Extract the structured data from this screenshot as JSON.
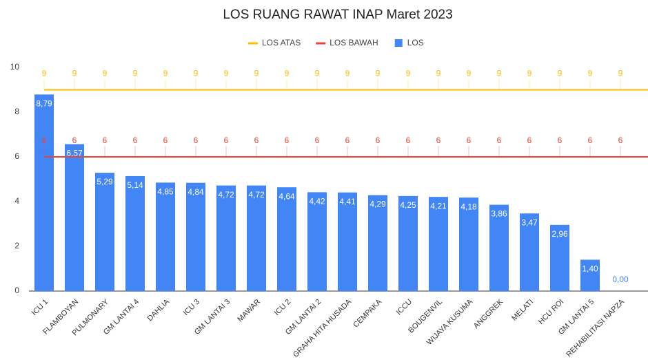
{
  "chart_data": {
    "type": "bar",
    "title": "LOS RUANG RAWAT INAP Maret 2023",
    "categories": [
      "ICU 1",
      "FLAMBOYAN",
      "PULMONARY",
      "GM LANTAI 4",
      "DAHLIA",
      "ICU 3",
      "GM LANTAI 3",
      "MAWAR",
      "ICU 2",
      "GM LANTAI 2",
      "GRAHA HITA HUSADA",
      "CEMPAKA",
      "ICCU",
      "BOUGENVIL",
      "WIJAYA KUSUMA",
      "ANGGREK",
      "MELATI",
      "HCU ROI",
      "GM LANTAI 5",
      "REHABILITASI NAPZA"
    ],
    "series": [
      {
        "name": "LOS ATAS",
        "type": "line",
        "color": "#fbbc04",
        "values": [
          9,
          9,
          9,
          9,
          9,
          9,
          9,
          9,
          9,
          9,
          9,
          9,
          9,
          9,
          9,
          9,
          9,
          9,
          9,
          9
        ]
      },
      {
        "name": "LOS BAWAH",
        "type": "line",
        "color": "#ea4335",
        "values": [
          6,
          6,
          6,
          6,
          6,
          6,
          6,
          6,
          6,
          6,
          6,
          6,
          6,
          6,
          6,
          6,
          6,
          6,
          6,
          6
        ]
      },
      {
        "name": "LOS",
        "type": "bar",
        "color": "#4285f4",
        "values": [
          8.79,
          6.57,
          5.29,
          5.14,
          4.85,
          4.84,
          4.72,
          4.72,
          4.64,
          4.42,
          4.41,
          4.29,
          4.25,
          4.21,
          4.18,
          3.86,
          3.47,
          2.96,
          1.4,
          0.0
        ],
        "value_labels": [
          "8,79",
          "6,57",
          "5,29",
          "5,14",
          "4,85",
          "4,84",
          "4,72",
          "4,72",
          "4,64",
          "4,42",
          "4,41",
          "4,29",
          "4,25",
          "4,21",
          "4,18",
          "3,86",
          "3,47",
          "2,96",
          "1,40",
          "0,00"
        ]
      }
    ],
    "ylim": [
      0,
      10
    ],
    "yticks": [
      0,
      2,
      4,
      6,
      8,
      10
    ],
    "legend": "top"
  }
}
